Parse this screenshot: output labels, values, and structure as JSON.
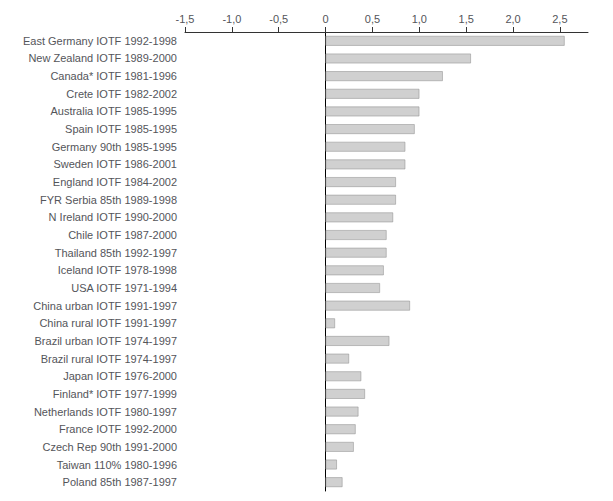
{
  "chart_data": {
    "type": "bar",
    "orientation": "horizontal",
    "categories": [
      "East Germany IOTF 1992-1998",
      "New Zealand IOTF 1989-2000",
      "Canada* IOTF 1981-1996",
      "Crete IOTF 1982-2002",
      "Australia IOTF 1985-1995",
      "Spain IOTF 1985-1995",
      "Germany 90th 1985-1995",
      "Sweden IOTF 1986-2001",
      "England IOTF 1984-2002",
      "FYR Serbia 85th 1989-1998",
      "N Ireland IOTF 1990-2000",
      "Chile IOTF 1987-2000",
      "Thailand 85th 1992-1997",
      "Iceland IOTF 1978-1998",
      "USA IOTF 1971-1994",
      "China urban IOTF 1991-1997",
      "China rural IOTF 1991-1997",
      "Brazil urban IOTF 1974-1997",
      "Brazil rural IOTF 1974-1997",
      "Japan IOTF 1976-2000",
      "Finland* IOTF 1977-1999",
      "Netherlands IOTF 1980-1997",
      "France IOTF 1992-2000",
      "Czech Rep 90th 1991-2000",
      "Taiwan 110% 1980-1996",
      "Poland 85th 1987-1997"
    ],
    "values": [
      2.55,
      1.55,
      1.25,
      1.0,
      1.0,
      0.95,
      0.85,
      0.85,
      0.75,
      0.75,
      0.72,
      0.65,
      0.65,
      0.62,
      0.58,
      0.9,
      0.1,
      0.68,
      0.25,
      0.38,
      0.42,
      0.35,
      0.32,
      0.3,
      0.12,
      0.18
    ],
    "color": "#d0d0d0",
    "xlim": [
      -1.5,
      2.8
    ],
    "xticks": [
      {
        "value": -1.5,
        "label": "-1,5"
      },
      {
        "value": -1.0,
        "label": "-1,0"
      },
      {
        "value": -0.5,
        "label": "-0,5"
      },
      0,
      {
        "value": 0.5,
        "label": "0,5"
      },
      {
        "value": 1.0,
        "label": "1,0"
      },
      {
        "value": 1.5,
        "label": "1,5"
      },
      {
        "value": 2.0,
        "label": "2,0"
      },
      {
        "value": 2.5,
        "label": "2,5"
      }
    ],
    "grid": false
  }
}
